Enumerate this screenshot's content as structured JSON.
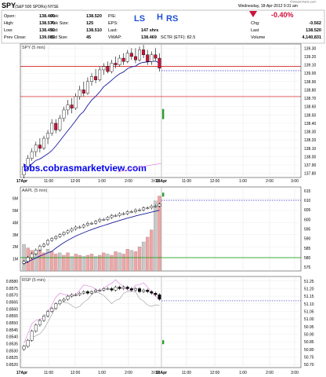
{
  "header": {
    "symbol": "SPY",
    "name": "(S&P 500 SPDRs)",
    "exchange": "NYSE",
    "date_line": "Wednesday, 18-Apr-2012 9:31 am",
    "brand": "©StockCharts.com",
    "change_pct": "-0.40%",
    "chg_label": "Chg:",
    "chg_value": "-0.562",
    "last_label": "Last",
    "last_value": "138.520",
    "volume_label": "Volume",
    "volume_value": "4,140,831",
    "stats": [
      {
        "label": "Open:",
        "value": "138.460"
      },
      {
        "label": "High:",
        "value": "138.570"
      },
      {
        "label": "Low:",
        "value": "138.450"
      },
      {
        "label": "Prev Close:",
        "value": "139.082"
      },
      {
        "label": "Ask:",
        "value": "138.520"
      },
      {
        "label": "Ask Size:",
        "value": "125"
      },
      {
        "label": "Bid:",
        "value": "138.510"
      },
      {
        "label": "Bid Size:",
        "value": "45"
      },
      {
        "label": "P/E:",
        "value": ""
      },
      {
        "label": "EPS:",
        "value": ""
      },
      {
        "label": "Last:",
        "value": "147 shrs"
      },
      {
        "label": "VWAP:",
        "value": "138.469"
      }
    ],
    "sctr": "SCTR (ETF): 82.5"
  },
  "annotations": {
    "ls": "LS",
    "h": "H",
    "rs": "RS",
    "watermark": "bbs.cobrasmarketview.com"
  },
  "colors": {
    "up": "#ffffff",
    "down": "#d0103a",
    "ma": "#1a1a9c",
    "volume": "#f2a3a3",
    "blue_anno": "#1f4fd6",
    "watermark": "#0000ee",
    "red_line": "#cc0000",
    "green_line": "#009900",
    "dotted": "#3333cc"
  },
  "chart_data": [
    {
      "type": "candlestick",
      "title": "SPY (5 min)",
      "y_ticks": [
        "139.30",
        "139.20",
        "139.10",
        "139.00",
        "138.90",
        "138.80",
        "138.70",
        "138.60",
        "138.50",
        "138.40",
        "138.30",
        "138.20",
        "138.10",
        "138.00",
        "137.90",
        "137.80"
      ],
      "ylim": [
        137.75,
        139.35
      ],
      "x_ticks": [
        "17Apr",
        "11:00",
        "12:00",
        "1:00",
        "2:00",
        "3:00",
        "18Apr",
        "11:00",
        "12:00",
        "1:00",
        "2:00",
        "3:00"
      ],
      "ma": "dark blue moving average",
      "ref_lines": [
        {
          "value": 139.082,
          "color": "red"
        },
        {
          "value": 138.72,
          "color": "red"
        },
        {
          "value": 139.03,
          "color": "blue dotted"
        }
      ],
      "candles": [
        [
          137.78,
          137.92,
          137.74,
          137.88
        ],
        [
          137.88,
          138.02,
          137.84,
          137.98
        ],
        [
          137.98,
          138.1,
          137.95,
          138.06
        ],
        [
          138.06,
          138.18,
          138.0,
          138.14
        ],
        [
          138.14,
          138.22,
          138.05,
          138.1
        ],
        [
          138.1,
          138.25,
          138.08,
          138.22
        ],
        [
          138.22,
          138.32,
          138.15,
          138.28
        ],
        [
          138.28,
          138.45,
          138.25,
          138.4
        ],
        [
          138.4,
          138.45,
          138.28,
          138.32
        ],
        [
          138.32,
          138.5,
          138.3,
          138.46
        ],
        [
          138.46,
          138.6,
          138.42,
          138.56
        ],
        [
          138.56,
          138.68,
          138.5,
          138.62
        ],
        [
          138.62,
          138.7,
          138.52,
          138.58
        ],
        [
          138.58,
          138.76,
          138.56,
          138.72
        ],
        [
          138.72,
          138.85,
          138.68,
          138.8
        ],
        [
          138.8,
          138.9,
          138.72,
          138.76
        ],
        [
          138.76,
          138.95,
          138.74,
          138.9
        ],
        [
          138.9,
          139.0,
          138.85,
          138.96
        ],
        [
          138.96,
          139.05,
          138.88,
          138.92
        ],
        [
          138.92,
          139.08,
          138.9,
          139.04
        ],
        [
          139.04,
          139.12,
          138.98,
          139.08
        ],
        [
          139.08,
          139.14,
          139.0,
          139.02
        ],
        [
          139.02,
          139.16,
          139.0,
          139.12
        ],
        [
          139.12,
          139.2,
          139.06,
          139.1
        ],
        [
          139.1,
          139.22,
          139.08,
          139.18
        ],
        [
          139.18,
          139.24,
          139.1,
          139.14
        ],
        [
          139.14,
          139.28,
          139.12,
          139.24
        ],
        [
          139.24,
          139.3,
          139.16,
          139.2
        ],
        [
          139.2,
          139.3,
          139.12,
          139.16
        ],
        [
          139.16,
          139.32,
          139.14,
          139.28
        ],
        [
          139.28,
          139.34,
          139.18,
          139.22
        ],
        [
          139.22,
          139.28,
          139.1,
          139.14
        ],
        [
          139.14,
          139.26,
          139.1,
          139.22
        ],
        [
          139.22,
          139.3,
          139.15,
          139.18
        ],
        [
          139.18,
          139.24,
          139.02,
          139.06
        ]
      ],
      "overnight": [
        138.45,
        138.57
      ]
    },
    {
      "type": "candlestick+volume",
      "title": "AAPL (5 min)",
      "y_ticks": [
        "615",
        "610",
        "605",
        "600",
        "595",
        "590",
        "585",
        "580",
        "575"
      ],
      "ylim": [
        573,
        617
      ],
      "volume_ticks": [
        "6M",
        "5M",
        "4M",
        "3M",
        "2M",
        "1M"
      ],
      "x_ticks": [
        "17Apr",
        "11:00",
        "12:00",
        "1:00",
        "2:00",
        "3:00",
        "18Apr",
        "11:00",
        "12:00",
        "1:00",
        "2:00",
        "3:00"
      ],
      "ref_lines": [
        {
          "value": 580,
          "color": "green"
        },
        {
          "value": 610,
          "color": "blue dotted"
        }
      ],
      "closes": [
        578,
        580,
        582,
        584,
        586,
        587,
        589,
        590,
        591,
        592,
        593,
        594,
        595,
        596,
        596,
        597,
        598,
        598,
        599,
        600,
        600,
        601,
        602,
        602,
        603,
        603,
        604,
        604,
        605,
        605,
        606,
        606,
        607,
        607,
        608
      ],
      "volume": [
        2.2,
        1.9,
        1.7,
        1.6,
        1.7,
        1.5,
        1.8,
        1.6,
        1.4,
        1.5,
        1.3,
        1.5,
        1.2,
        1.4,
        1.3,
        1.2,
        1.3,
        1.4,
        1.2,
        1.3,
        1.5,
        1.4,
        1.3,
        1.6,
        1.5,
        1.4,
        1.8,
        1.7,
        1.6,
        2.0,
        2.4,
        2.8,
        3.4,
        5.8,
        6.2
      ]
    },
    {
      "type": "candlestick",
      "title": "RSP (5 min)",
      "y_ticks_left": [
        "0.8580",
        "0.8575",
        "0.8570",
        "0.8565",
        "0.8560",
        "0.8555",
        "0.8550",
        "0.8545",
        "0.8540",
        "0.8535",
        "0.8530",
        "0.8525",
        "0.8520"
      ],
      "y_ticks_right": [
        "51.25",
        "51.20",
        "51.15",
        "51.10",
        "51.05",
        "51.00",
        "50.95",
        "50.90",
        "50.85",
        "50.80",
        "50.75",
        "50.70"
      ],
      "ylim": [
        50.68,
        51.28
      ],
      "x_ticks": [
        "17Apr",
        "11:00",
        "12:00",
        "1:00",
        "2:00",
        "3:00",
        "18Apr",
        "11:00",
        "12:00",
        "1:00",
        "2:00",
        "3:00"
      ],
      "ref_lines": [
        {
          "value": 51.12,
          "color": "blue dotted"
        }
      ],
      "closes": [
        50.82,
        50.86,
        50.92,
        50.96,
        50.99,
        51.02,
        51.05,
        51.07,
        51.1,
        51.12,
        51.13,
        51.15,
        51.16,
        51.16,
        51.17,
        51.18,
        51.17,
        51.18,
        51.19,
        51.19,
        51.2,
        51.2,
        51.19,
        51.21,
        51.2,
        51.21,
        51.2,
        51.19,
        51.2,
        51.18,
        51.19,
        51.18,
        51.17,
        51.16,
        51.13
      ]
    }
  ]
}
